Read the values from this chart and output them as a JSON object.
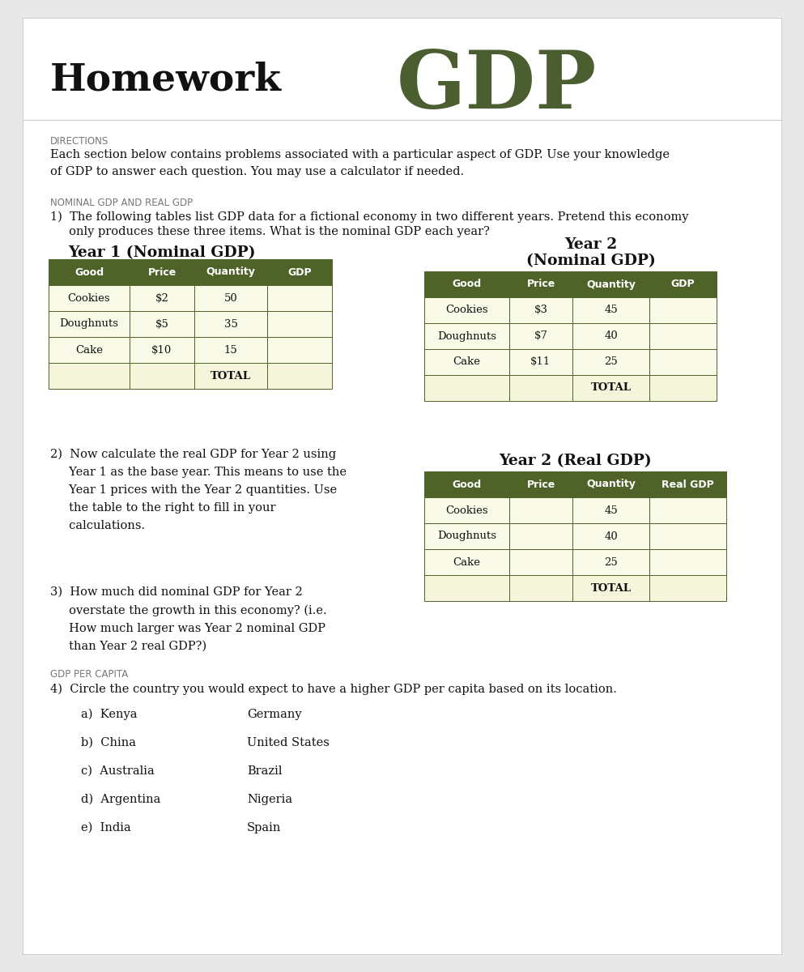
{
  "title_homework": "Homework",
  "title_gdp": "GDP",
  "directions_label": "DIRECTIONS",
  "directions_text": "Each section below contains problems associated with a particular aspect of GDP. Use your knowledge\nof GDP to answer each question. You may use a calculator if needed.",
  "section1_label": "NOMINAL GDP AND REAL GDP",
  "q1_text_line1": "1)  The following tables list GDP data for a fictional economy in two different years. Pretend this economy",
  "q1_text_line2": "     only produces these three items. What is the nominal GDP each year?",
  "year1_title": "Year 1 (Nominal GDP)",
  "year2_title_line1": "Year 2",
  "year2_title_line2": "(Nominal GDP)",
  "year1_headers": [
    "Good",
    "Price",
    "Quantity",
    "GDP"
  ],
  "year1_rows": [
    [
      "Cookies",
      "$2",
      "50",
      ""
    ],
    [
      "Doughnuts",
      "$5",
      "35",
      ""
    ],
    [
      "Cake",
      "$10",
      "15",
      ""
    ],
    [
      "",
      "",
      "TOTAL",
      ""
    ]
  ],
  "year2_headers": [
    "Good",
    "Price",
    "Quantity",
    "GDP"
  ],
  "year2_rows": [
    [
      "Cookies",
      "$3",
      "45",
      ""
    ],
    [
      "Doughnuts",
      "$7",
      "40",
      ""
    ],
    [
      "Cake",
      "$11",
      "25",
      ""
    ],
    [
      "",
      "",
      "TOTAL",
      ""
    ]
  ],
  "q2_text": "2)  Now calculate the real GDP for Year 2 using\n     Year 1 as the base year. This means to use the\n     Year 1 prices with the Year 2 quantities. Use\n     the table to the right to fill in your\n     calculations.",
  "year2_real_title": "Year 2 (Real GDP)",
  "real_headers": [
    "Good",
    "Price",
    "Quantity",
    "Real GDP"
  ],
  "real_rows": [
    [
      "Cookies",
      "",
      "45",
      ""
    ],
    [
      "Doughnuts",
      "",
      "40",
      ""
    ],
    [
      "Cake",
      "",
      "25",
      ""
    ],
    [
      "",
      "",
      "TOTAL",
      ""
    ]
  ],
  "q3_text": "3)  How much did nominal GDP for Year 2\n     overstate the growth in this economy? (i.e.\n     How much larger was Year 2 nominal GDP\n     than Year 2 real GDP?)",
  "section2_label": "GDP PER CAPITA",
  "q4_text": "4)  Circle the country you would expect to have a higher GDP per capita based on its location.",
  "countries_left": [
    "a)  Kenya",
    "b)  China",
    "c)  Australia",
    "d)  Argentina",
    "e)  India"
  ],
  "countries_right": [
    "Germany",
    "United States",
    "Brazil",
    "Nigeria",
    "Spain"
  ],
  "header_bg": "#4f6228",
  "header_text": "#ffffff",
  "row_bg": "#fafae8",
  "total_row_bg": "#f5f5dc",
  "table_border": "#4f6228",
  "bg_color": "#e8e8e8",
  "page_bg": "#ffffff",
  "gdp_color": "#4a5e2f",
  "homework_color": "#111111",
  "text_color": "#111111",
  "section_label_color": "#777777"
}
